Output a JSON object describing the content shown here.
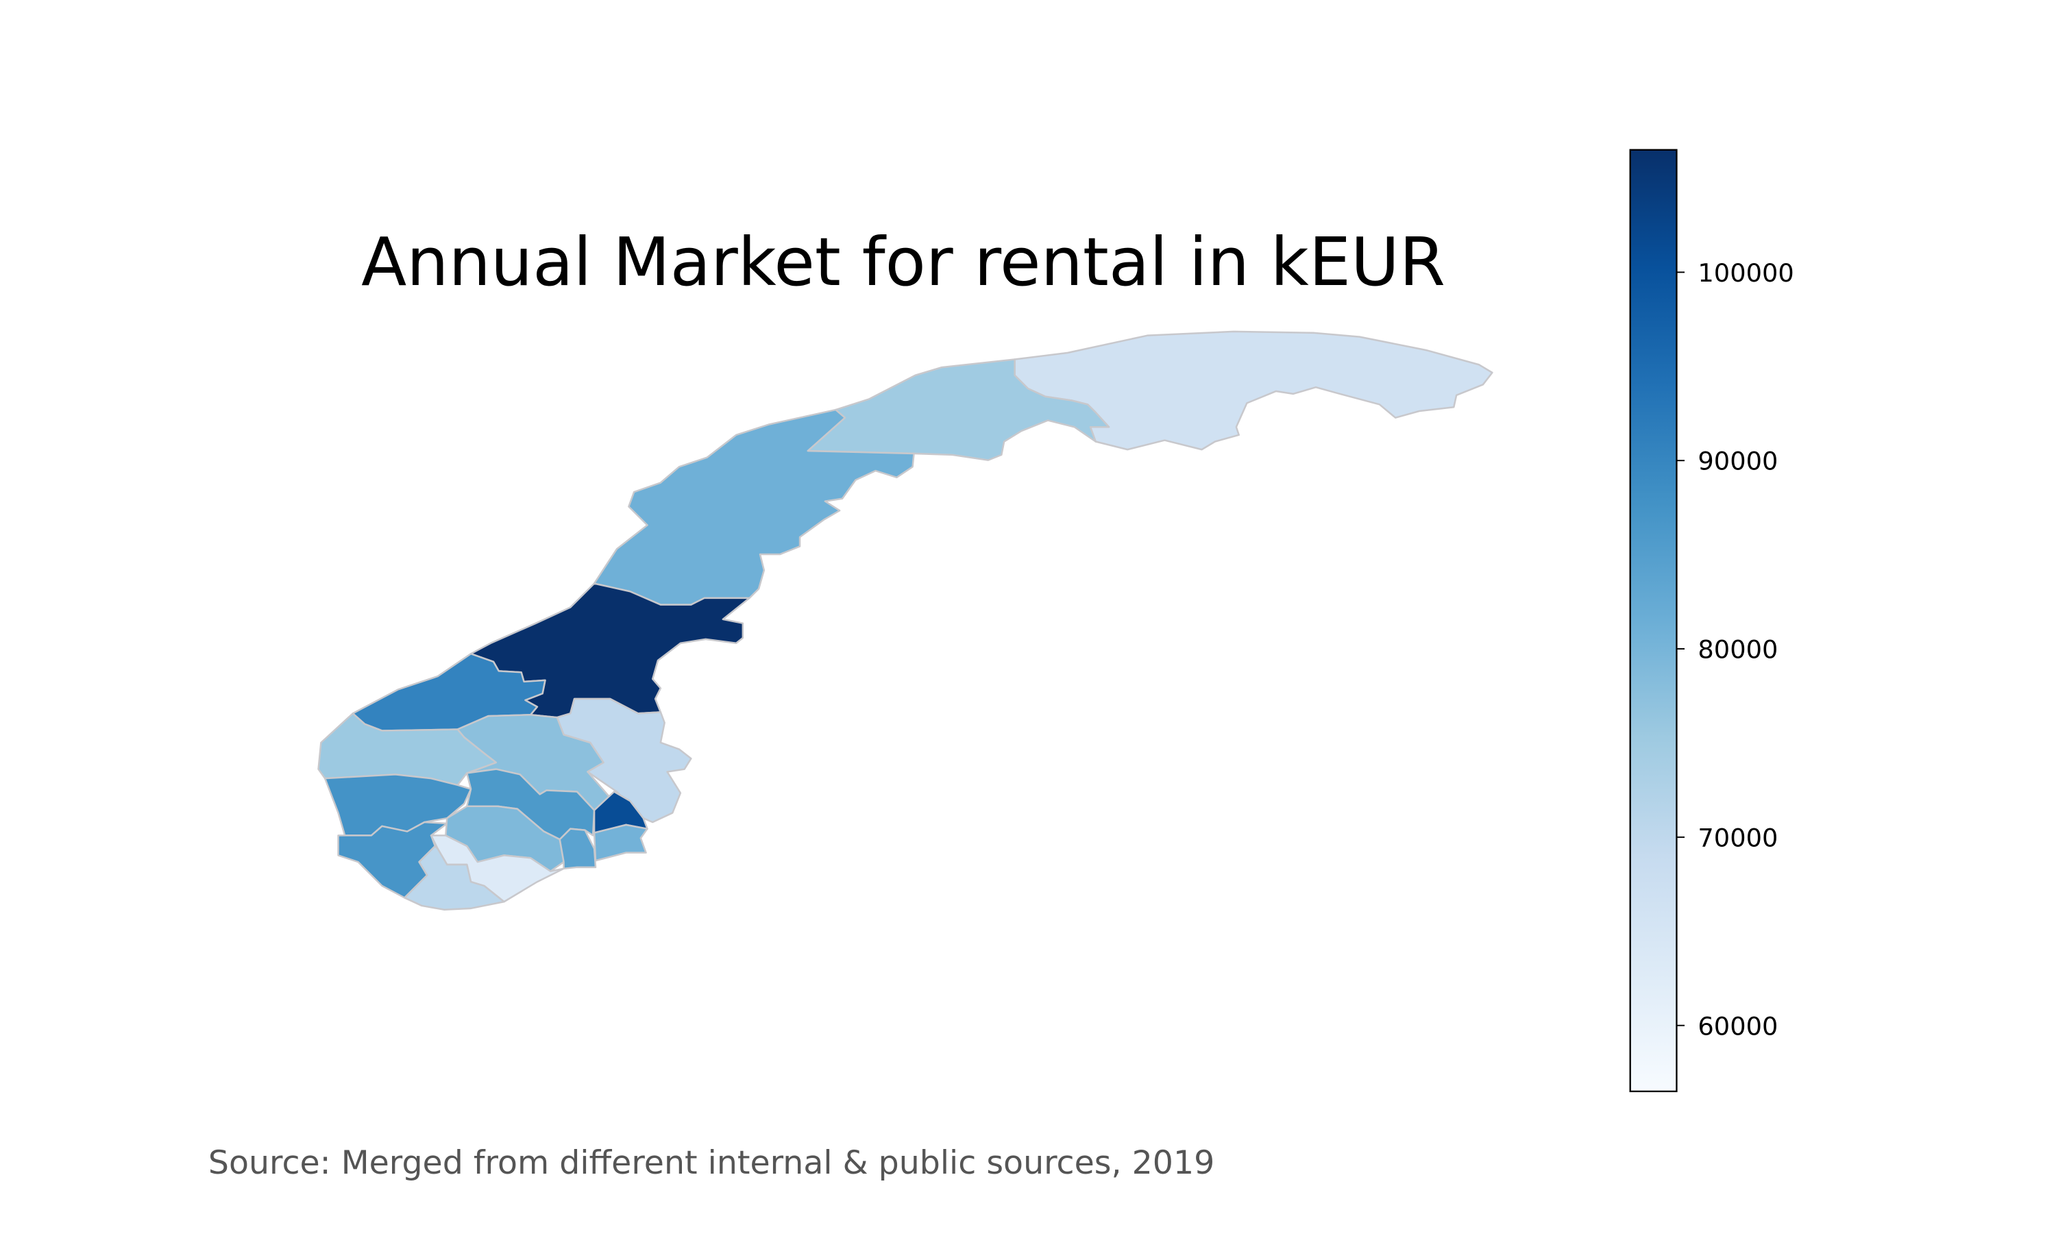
{
  "title": "Annual Market for rental in kEUR",
  "source": "Source: Merged from different internal & public sources, 2019",
  "colorbar": {
    "colormap": "Blues",
    "min": 56500,
    "max": 106500,
    "ticks": [
      {
        "value": 100000,
        "label": "100000"
      },
      {
        "value": 90000,
        "label": "90000"
      },
      {
        "value": 80000,
        "label": "80000"
      },
      {
        "value": 70000,
        "label": "70000"
      },
      {
        "value": 60000,
        "label": "60000"
      }
    ]
  },
  "colors": {
    "region_border": "#c8c8cc",
    "title": "#000000",
    "source_text": "#555555",
    "colorbar_frame": "#000000"
  },
  "regions": [
    {
      "id": "finnmark",
      "value": 66500
    },
    {
      "id": "troms",
      "value": 75000
    },
    {
      "id": "nordland",
      "value": 81000
    },
    {
      "id": "trondelag",
      "value": 106500
    },
    {
      "id": "more-og-romsdal",
      "value": 90500
    },
    {
      "id": "sogn-og-fjordane",
      "value": 75500
    },
    {
      "id": "oppland",
      "value": 77500
    },
    {
      "id": "hedmark",
      "value": 70000
    },
    {
      "id": "hordaland",
      "value": 87500
    },
    {
      "id": "buskerud",
      "value": 86000
    },
    {
      "id": "akershus-oslo",
      "value": 101000
    },
    {
      "id": "rogaland",
      "value": 87000
    },
    {
      "id": "telemark",
      "value": 79000
    },
    {
      "id": "vestfold",
      "value": 84000
    },
    {
      "id": "ostfold",
      "value": 80500
    },
    {
      "id": "aust-agder",
      "value": 63000
    },
    {
      "id": "vest-agder",
      "value": 70500
    }
  ]
}
